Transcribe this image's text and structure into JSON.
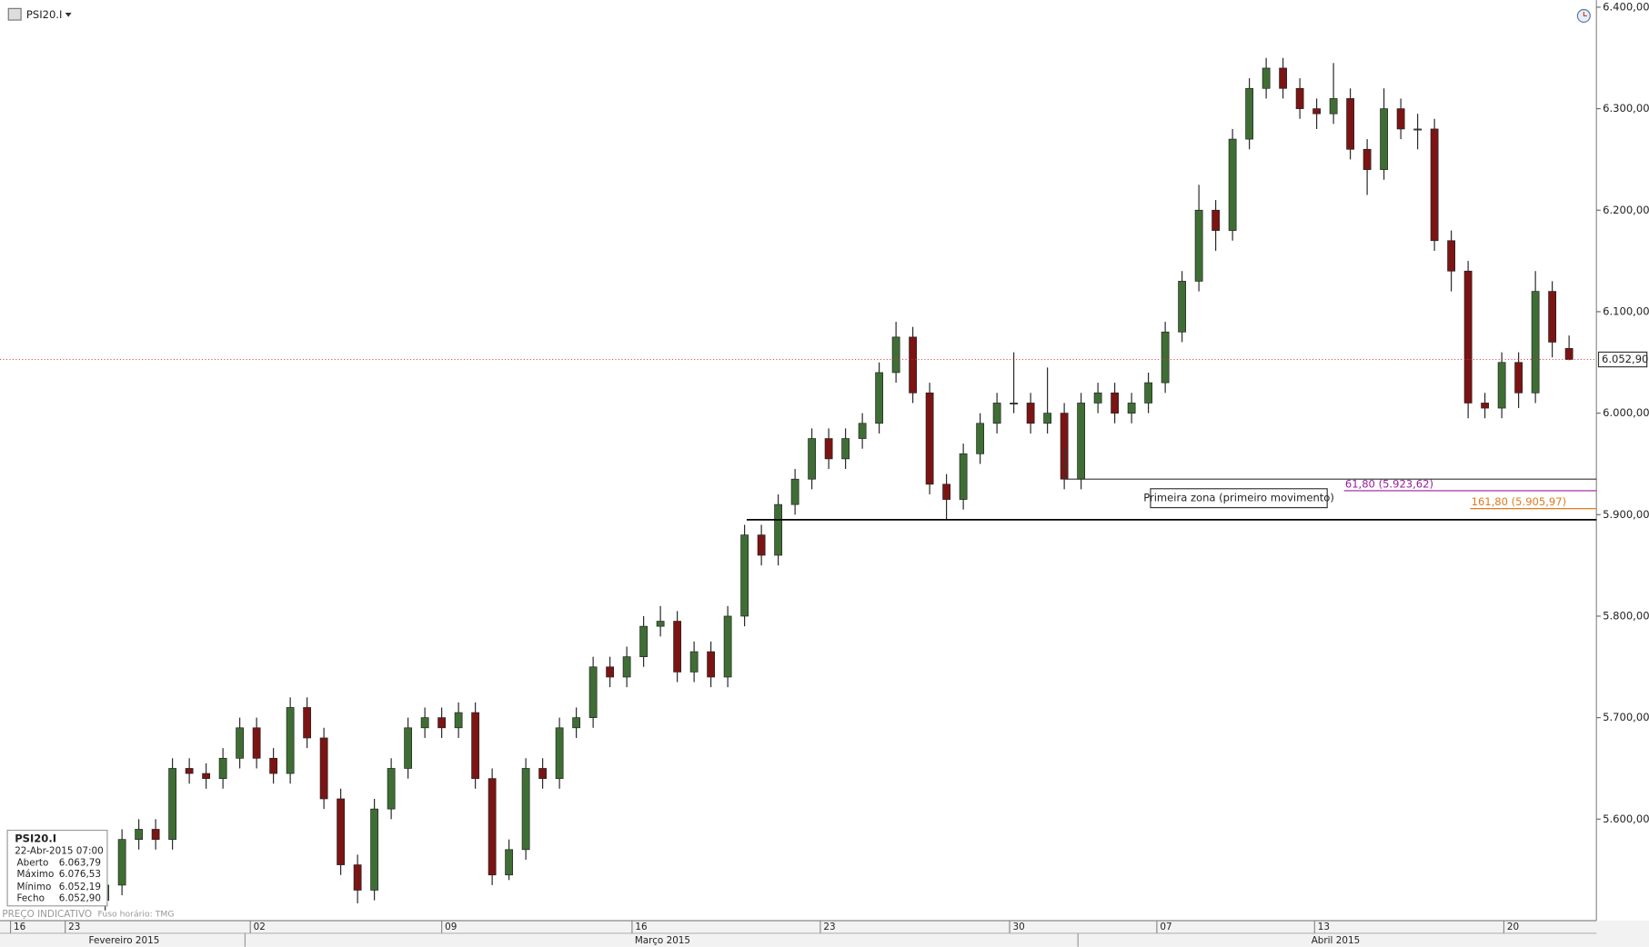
{
  "chart_data": {
    "type": "candlestick",
    "symbol": "PSI20.I",
    "up_color": "#3f6e35",
    "down_color": "#7c1414",
    "x": [
      0,
      1,
      2,
      3,
      4,
      5,
      6,
      7,
      8,
      9,
      10,
      11,
      12,
      13,
      14,
      15,
      16,
      17,
      18,
      19,
      20,
      21,
      22,
      23,
      24,
      25,
      26,
      27,
      28,
      29,
      30,
      31,
      32,
      33,
      34,
      35,
      36,
      37,
      38,
      39,
      40,
      41,
      42,
      43,
      44,
      45,
      46,
      47,
      48,
      49,
      50,
      51,
      52,
      53,
      54,
      55,
      56,
      57,
      58,
      59,
      60,
      61,
      62,
      63,
      64,
      65,
      66,
      67,
      68,
      69,
      70,
      71,
      72,
      73,
      74,
      75,
      76,
      77,
      78,
      79,
      80,
      81,
      82,
      83,
      84,
      85,
      86,
      87
    ],
    "open": [
      5520,
      5535,
      5580,
      5590,
      5580,
      5650,
      5645,
      5640,
      5660,
      5690,
      5660,
      5645,
      5710,
      5680,
      5620,
      5555,
      5530,
      5610,
      5650,
      5690,
      5700,
      5690,
      5705,
      5640,
      5545,
      5570,
      5650,
      5640,
      5690,
      5700,
      5750,
      5740,
      5760,
      5790,
      5795,
      5745,
      5765,
      5740,
      5800,
      5880,
      5860,
      5910,
      5935,
      5975,
      5955,
      5975,
      5990,
      6040,
      6075,
      6020,
      5930,
      5915,
      5960,
      5990,
      6010,
      6010,
      5990,
      6000,
      5935,
      6010,
      6020,
      6000,
      6010,
      6030,
      6080,
      6130,
      6200,
      6180,
      6270,
      6320,
      6340,
      6320,
      6300,
      6295,
      6310,
      6260,
      6240,
      6300,
      6280,
      6280,
      6170,
      6140,
      6010,
      6005,
      6050,
      6020,
      6120,
      6063.79
    ],
    "high": [
      5550,
      5590,
      5600,
      5600,
      5660,
      5660,
      5655,
      5670,
      5700,
      5700,
      5670,
      5720,
      5720,
      5690,
      5630,
      5565,
      5620,
      5660,
      5700,
      5710,
      5710,
      5715,
      5715,
      5650,
      5580,
      5660,
      5660,
      5700,
      5710,
      5760,
      5760,
      5770,
      5800,
      5810,
      5805,
      5775,
      5775,
      5810,
      5890,
      5890,
      5920,
      5945,
      5985,
      5985,
      5985,
      6000,
      6050,
      6090,
      6085,
      6030,
      5940,
      5970,
      6000,
      6020,
      6060,
      6020,
      6045,
      6010,
      6020,
      6030,
      6030,
      6020,
      6040,
      6090,
      6140,
      6225,
      6210,
      6280,
      6330,
      6350,
      6350,
      6330,
      6310,
      6345,
      6320,
      6270,
      6320,
      6310,
      6295,
      6290,
      6180,
      6150,
      6020,
      6060,
      6060,
      6140,
      6130,
      6076.53
    ],
    "low": [
      5510,
      5525,
      5570,
      5570,
      5570,
      5635,
      5630,
      5630,
      5650,
      5650,
      5635,
      5635,
      5670,
      5610,
      5545,
      5517,
      5520,
      5600,
      5640,
      5680,
      5680,
      5680,
      5630,
      5535,
      5540,
      5560,
      5630,
      5630,
      5680,
      5690,
      5730,
      5730,
      5750,
      5780,
      5735,
      5735,
      5730,
      5730,
      5790,
      5850,
      5850,
      5900,
      5925,
      5945,
      5945,
      5965,
      5980,
      6030,
      6010,
      5920,
      5895,
      5905,
      5950,
      5980,
      6000,
      5980,
      5980,
      5925,
      5925,
      6000,
      5990,
      5990,
      6000,
      6020,
      6070,
      6120,
      6160,
      6170,
      6260,
      6310,
      6310,
      6290,
      6280,
      6285,
      6250,
      6215,
      6230,
      6270,
      6260,
      6160,
      6120,
      5995,
      5995,
      5995,
      6005,
      6010,
      6055,
      6052.19
    ],
    "close": [
      5535,
      5580,
      5590,
      5580,
      5650,
      5645,
      5640,
      5660,
      5690,
      5660,
      5645,
      5710,
      5680,
      5620,
      5555,
      5530,
      5610,
      5650,
      5690,
      5700,
      5690,
      5705,
      5640,
      5545,
      5570,
      5650,
      5640,
      5690,
      5700,
      5750,
      5740,
      5760,
      5790,
      5795,
      5745,
      5765,
      5740,
      5800,
      5880,
      5860,
      5910,
      5935,
      5975,
      5955,
      5975,
      5990,
      6040,
      6075,
      6020,
      5930,
      5915,
      5960,
      5990,
      6010,
      6010,
      5990,
      6000,
      5935,
      6010,
      6020,
      6000,
      6010,
      6030,
      6080,
      6130,
      6200,
      6180,
      6270,
      6320,
      6340,
      6320,
      6300,
      6295,
      6310,
      6260,
      6240,
      6300,
      6280,
      6280,
      6170,
      6140,
      6010,
      6005,
      6050,
      6020,
      6120,
      6070,
      6052.9
    ],
    "xlim": [
      -6.25,
      88.625
    ],
    "xticks": [
      {
        "value": -5.625,
        "label": "16"
      },
      {
        "value": -2.375,
        "label": "23"
      },
      {
        "value": 8.625,
        "label": "02"
      },
      {
        "value": 20,
        "label": "09"
      },
      {
        "value": 31.3125,
        "label": "16"
      },
      {
        "value": 42.5,
        "label": "23"
      },
      {
        "value": 53.75,
        "label": "30"
      },
      {
        "value": 62.5,
        "label": "07"
      },
      {
        "value": 71.875,
        "label": "13"
      },
      {
        "value": 83.125,
        "label": "20"
      }
    ],
    "months": [
      "Fevereiro 2015",
      "Março 2015",
      "Abril 2015"
    ],
    "ylim": [
      5500,
      6407
    ],
    "yticks": [
      {
        "value": 5600,
        "label": "5.600,00"
      },
      {
        "value": 5700,
        "label": "5.700,00"
      },
      {
        "value": 5800,
        "label": "5.800,00"
      },
      {
        "value": 5900,
        "label": "5.900,00"
      },
      {
        "value": 6000,
        "label": "6.000,00"
      },
      {
        "value": 6100,
        "label": "6.100,00"
      },
      {
        "value": 6200,
        "label": "6.200,00"
      },
      {
        "value": 6300,
        "label": "6.300,00"
      },
      {
        "value": 6400,
        "label": "6.400,00"
      }
    ],
    "last_price": {
      "value": 6052.9,
      "label": "6.052,90",
      "color": "#e03030"
    },
    "levels": [
      {
        "value": 5895,
        "color": "#000000"
      },
      {
        "value": 5935,
        "color": "#333333"
      },
      {
        "value": 5923.62,
        "label": "61,80 (5.923,62)",
        "color": "#9a1e9e"
      },
      {
        "value": 5905.97,
        "label": "161,80 (5.905,97)",
        "color": "#e07b20"
      }
    ],
    "annotation": "Primeira zona (primeiro movimento)"
  },
  "info_box": {
    "title": "PSI20.I",
    "datetime": "22-Abr-2015 07:00",
    "rows": [
      [
        "Aberto",
        "6.063,79"
      ],
      [
        "Máximo",
        "6.076,53"
      ],
      [
        "Mínimo",
        "6.052,19"
      ],
      [
        "Fecho",
        "6.052,90"
      ]
    ]
  },
  "footer": {
    "left": "PREÇO INDICATIVO",
    "timezone": "Fuso horário: TMG"
  }
}
